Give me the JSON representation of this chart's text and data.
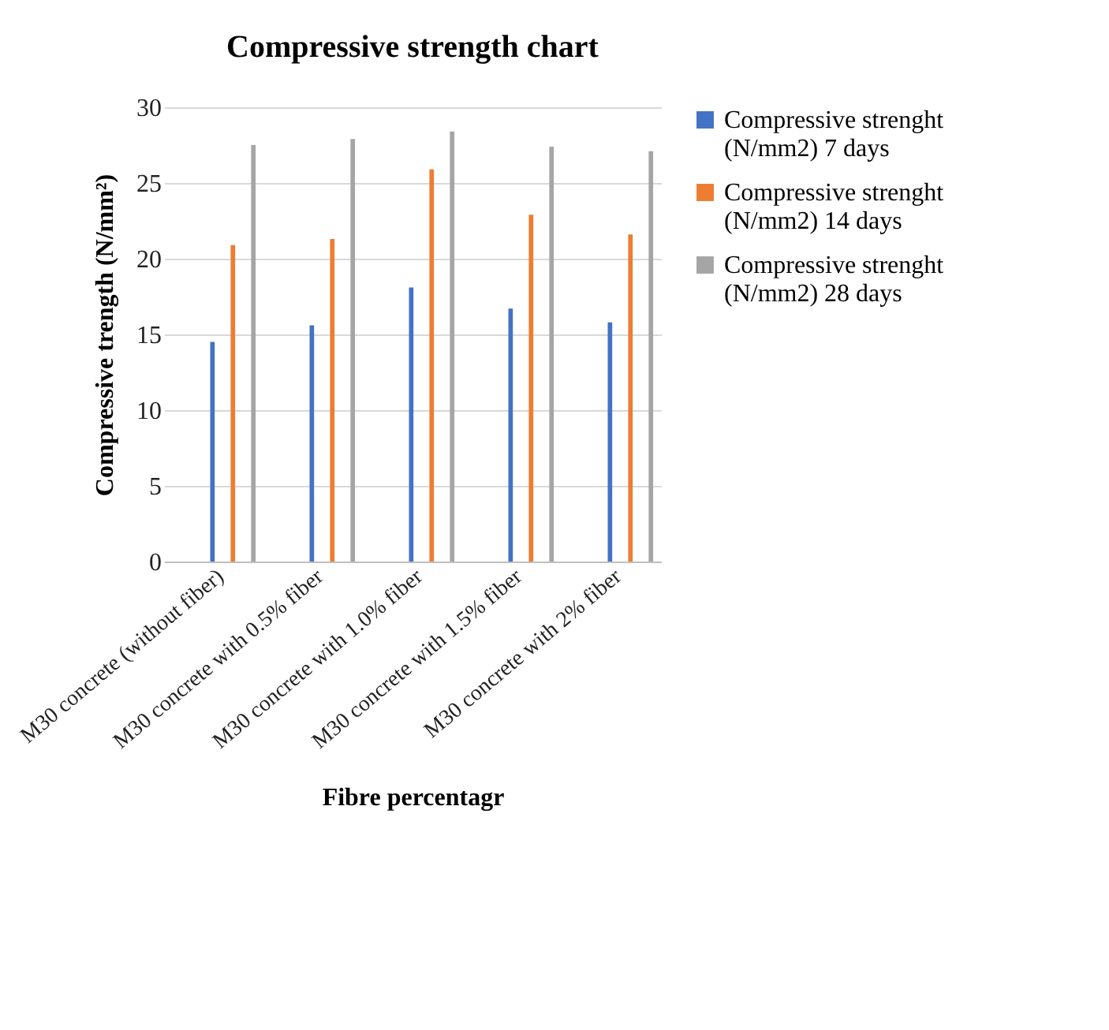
{
  "chart_data": {
    "type": "bar",
    "title": "Compressive strength chart",
    "xlabel": "Fibre percentagr",
    "ylabel": "Compressive trength (N/mm²)",
    "categories": [
      "M30 concrete (without fiber)",
      "M30 concrete with 0.5% fiber",
      "M30 concrete with 1.0% fiber",
      "M30 concrete with 1.5% fiber",
      "M30 concrete with 2% fiber"
    ],
    "series": [
      {
        "name": "Compressive strenght (N/mm2) 7 days",
        "color": "#4472c4",
        "values": [
          14.5,
          15.6,
          18.1,
          16.7,
          15.8
        ]
      },
      {
        "name": "Compressive strenght (N/mm2) 14 days",
        "color": "#ed7d31",
        "values": [
          20.9,
          21.3,
          25.9,
          22.9,
          21.6
        ]
      },
      {
        "name": "Compressive strenght (N/mm2) 28 days",
        "color": "#a5a5a5",
        "values": [
          27.5,
          27.9,
          28.4,
          27.4,
          27.1
        ]
      }
    ],
    "ylim": [
      0,
      30
    ],
    "yticks": [
      0,
      5,
      10,
      15,
      20,
      25,
      30
    ],
    "grid": "y",
    "legend": "right"
  }
}
